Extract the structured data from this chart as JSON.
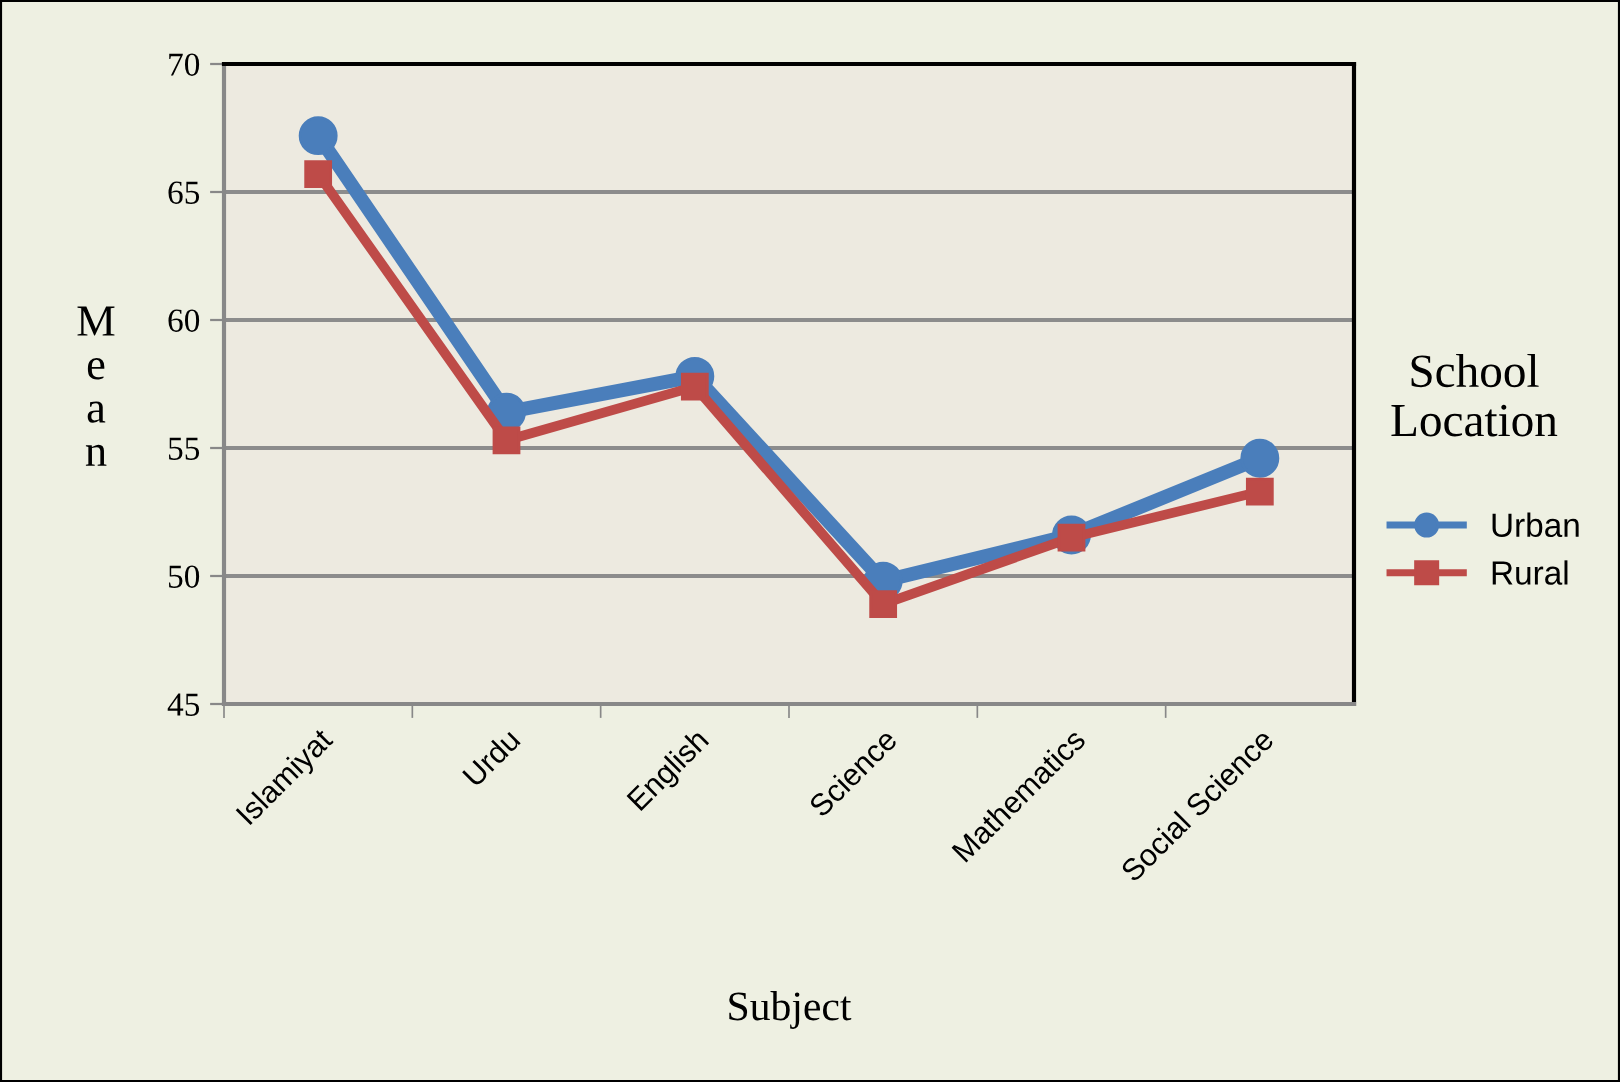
{
  "chart_data": {
    "type": "line",
    "xlabel": "Subject",
    "ylabel": "Mean",
    "legend_title": "School Location",
    "categories": [
      "Islamiyat",
      "Urdu",
      "English",
      "Science",
      "Mathematics",
      "Social Science"
    ],
    "series": [
      {
        "name": "Urban",
        "color": "#4a7ebb",
        "values": [
          67.2,
          56.4,
          57.8,
          49.8,
          51.6,
          54.6
        ],
        "marker": "circle"
      },
      {
        "name": "Rural",
        "color": "#be4b48",
        "values": [
          65.7,
          55.3,
          57.4,
          48.9,
          51.5,
          53.3
        ],
        "marker": "square"
      }
    ],
    "ylim": [
      45,
      70
    ],
    "yticks": [
      45,
      50,
      55,
      60,
      65,
      70
    ],
    "grid": "y",
    "legend": "right"
  }
}
